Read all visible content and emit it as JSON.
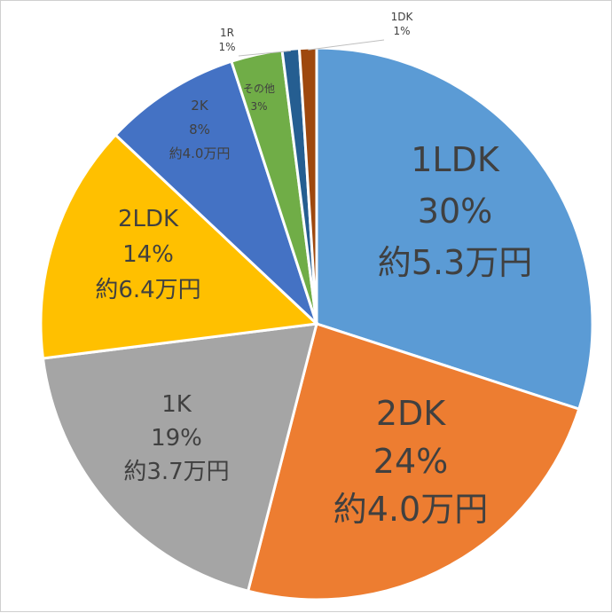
{
  "chart_data": {
    "type": "pie",
    "title": "",
    "slices": [
      {
        "name": "1LDK",
        "value": 30,
        "percent_label": "30%",
        "rent_label": "約5.3万円",
        "color": "#5b9bd5"
      },
      {
        "name": "2DK",
        "value": 24,
        "percent_label": "24%",
        "rent_label": "約4.0万円",
        "color": "#ed7d31"
      },
      {
        "name": "1K",
        "value": 19,
        "percent_label": "19%",
        "rent_label": "約3.7万円",
        "color": "#a5a5a5"
      },
      {
        "name": "2LDK",
        "value": 14,
        "percent_label": "14%",
        "rent_label": "約6.4万円",
        "color": "#ffc000"
      },
      {
        "name": "2K",
        "value": 8,
        "percent_label": "8%",
        "rent_label": "約4.0万円",
        "color": "#4472c4"
      },
      {
        "name": "その他",
        "value": 3,
        "percent_label": "3%",
        "rent_label": "",
        "color": "#70ad47"
      },
      {
        "name": "1R",
        "value": 1,
        "percent_label": "1%",
        "rent_label": "",
        "color": "#255e91"
      },
      {
        "name": "1DK",
        "value": 1,
        "percent_label": "1%",
        "rent_label": "",
        "color": "#9e480e"
      }
    ]
  }
}
